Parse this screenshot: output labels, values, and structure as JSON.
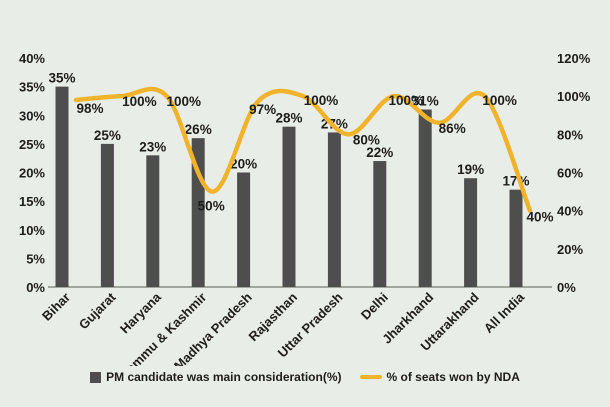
{
  "chart_data": {
    "type": "bar",
    "subtype": "combo-bar-line",
    "title": "",
    "categories": [
      "Bihar",
      "Gujarat",
      "Haryana",
      "Jammu & Kashmir",
      "Madhya Pradesh",
      "Rajasthan",
      "Uttar Pradesh",
      "Delhi",
      "Jharkhand",
      "Uttarakhand",
      "All India"
    ],
    "series": [
      {
        "name": "PM candidate was main consideration(%)",
        "type": "bar",
        "axis": "left",
        "color": "#4e4e4c",
        "values": [
          35,
          25,
          23,
          26,
          20,
          28,
          27,
          22,
          31,
          19,
          17
        ]
      },
      {
        "name": "% of seats won by NDA",
        "type": "line",
        "axis": "right",
        "color": "#f2b32c",
        "values": [
          98,
          100,
          100,
          50,
          97,
          100,
          80,
          100,
          86,
          100,
          40
        ],
        "label_offsets": [
          [
            14,
            9
          ],
          [
            18,
            6
          ],
          [
            17,
            6
          ],
          [
            -1,
            15
          ],
          [
            5,
            8
          ],
          [
            18,
            5
          ],
          [
            18,
            6
          ],
          [
            12,
            5
          ],
          [
            13,
            6
          ],
          [
            15,
            5
          ],
          [
            10,
            7
          ]
        ]
      }
    ],
    "axes": {
      "left": {
        "min": 0,
        "max": 40,
        "step": 5,
        "unit": "%"
      },
      "right": {
        "min": 0,
        "max": 120,
        "step": 20,
        "unit": "%"
      }
    },
    "legend": {
      "position": "bottom-center"
    },
    "grid": false,
    "background": "#e8eee7",
    "text_color": "#1d1d1b",
    "axis_line_color": "#a0a59e"
  }
}
